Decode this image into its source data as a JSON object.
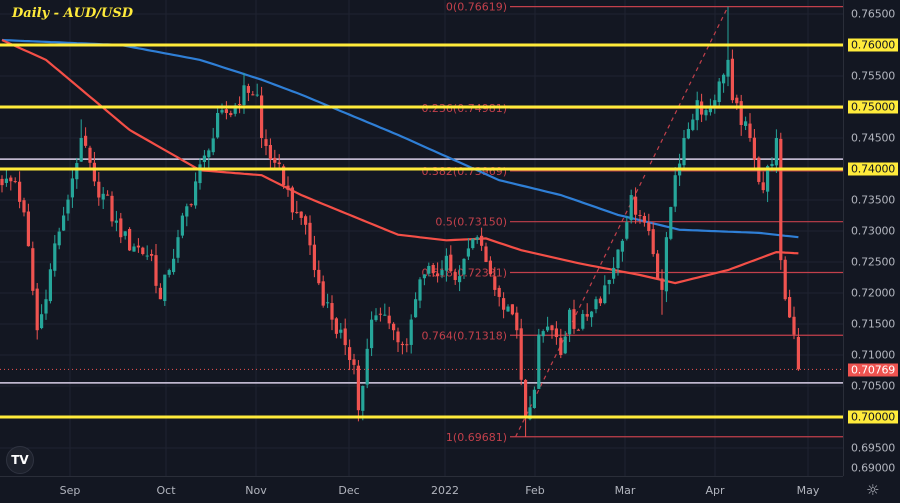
{
  "header": {
    "title": "Daily - AUD/USD"
  },
  "logo_text": "TV",
  "colors": {
    "up": "#26a69a",
    "down": "#ef5350",
    "ma_fast": "#f44f47",
    "ma_slow": "#2f7fd6",
    "level": "#ffeb3b",
    "support": "#d9cfe8",
    "fib": "#c2404b",
    "background": "#131722"
  },
  "chart_data": {
    "type": "candlestick",
    "title": "Daily - AUD/USD",
    "ylim": [
      0.688,
      0.7675
    ],
    "y_ticks": [
      "0.76500",
      "0.76000",
      "0.75500",
      "0.75000",
      "0.74500",
      "0.74000",
      "0.73500",
      "0.73000",
      "0.72500",
      "0.72000",
      "0.71500",
      "0.71000",
      "0.70500",
      "0.70000",
      "0.69500",
      "0.69000"
    ],
    "highlighted_ticks": [
      "0.76000",
      "0.75000",
      "0.74000",
      "0.70000"
    ],
    "current_price": "0.70769",
    "x_ticks": [
      "Sep",
      "Oct",
      "Nov",
      "Dec",
      "2022",
      "Feb",
      "Mar",
      "Apr",
      "May"
    ],
    "num_days": 182,
    "close_path": [
      [
        0,
        0.7374
      ],
      [
        3,
        0.738
      ],
      [
        5,
        0.733
      ],
      [
        8,
        0.714
      ],
      [
        10,
        0.719
      ],
      [
        12,
        0.728
      ],
      [
        14,
        0.7325
      ],
      [
        18,
        0.745
      ],
      [
        20,
        0.741
      ],
      [
        21,
        0.738
      ],
      [
        23,
        0.736
      ],
      [
        27,
        0.729
      ],
      [
        30,
        0.7275
      ],
      [
        34,
        0.726
      ],
      [
        36,
        0.719
      ],
      [
        38,
        0.7237
      ],
      [
        40,
        0.729
      ],
      [
        44,
        0.738
      ],
      [
        47,
        0.743
      ],
      [
        50,
        0.7495
      ],
      [
        52,
        0.7487
      ],
      [
        55,
        0.7535
      ],
      [
        58,
        0.752
      ],
      [
        59,
        0.745
      ],
      [
        62,
        0.741
      ],
      [
        64,
        0.7374
      ],
      [
        67,
        0.733
      ],
      [
        69,
        0.731
      ],
      [
        71,
        0.7237
      ],
      [
        75,
        0.7157
      ],
      [
        78,
        0.7116
      ],
      [
        80,
        0.7084
      ],
      [
        81,
        0.7011
      ],
      [
        82,
        0.705
      ],
      [
        84,
        0.7157
      ],
      [
        87,
        0.7165
      ],
      [
        89,
        0.714
      ],
      [
        92,
        0.7116
      ],
      [
        94,
        0.719
      ],
      [
        96,
        0.723
      ],
      [
        100,
        0.7237
      ],
      [
        101,
        0.726
      ],
      [
        103,
        0.7221
      ],
      [
        105,
        0.7255
      ],
      [
        108,
        0.729
      ],
      [
        110,
        0.725
      ],
      [
        112,
        0.7205
      ],
      [
        114,
        0.7173
      ],
      [
        117,
        0.714
      ],
      [
        118,
        0.706
      ],
      [
        119,
        0.7
      ],
      [
        121,
        0.7044
      ],
      [
        122,
        0.7133
      ],
      [
        125,
        0.714
      ],
      [
        127,
        0.71
      ],
      [
        129,
        0.7173
      ],
      [
        131,
        0.714
      ],
      [
        135,
        0.719
      ],
      [
        138,
        0.7221
      ],
      [
        140,
        0.727
      ],
      [
        143,
        0.7358
      ],
      [
        145,
        0.7325
      ],
      [
        147,
        0.73
      ],
      [
        150,
        0.7205
      ],
      [
        151,
        0.729
      ],
      [
        153,
        0.739
      ],
      [
        155,
        0.745
      ],
      [
        158,
        0.7511
      ],
      [
        160,
        0.7495
      ],
      [
        162,
        0.7511
      ],
      [
        164,
        0.7552
      ],
      [
        165,
        0.7576
      ],
      [
        166,
        0.7511
      ],
      [
        168,
        0.7471
      ],
      [
        170,
        0.745
      ],
      [
        171,
        0.7415
      ],
      [
        173,
        0.7366
      ],
      [
        176,
        0.745
      ],
      [
        177,
        0.7253
      ],
      [
        178,
        0.719
      ],
      [
        180,
        0.7133
      ],
      [
        181,
        0.70769
      ]
    ],
    "wick_extremes": [
      [
        18,
        "high",
        0.748
      ],
      [
        8,
        "low",
        0.7125
      ],
      [
        55,
        "high",
        0.7555
      ],
      [
        81,
        "low",
        0.6993
      ],
      [
        119,
        "low",
        0.6968
      ],
      [
        165,
        "high",
        0.76619
      ],
      [
        150,
        "low",
        0.7165
      ]
    ],
    "series": [
      {
        "name": "Slow MA (blue)",
        "points": [
          [
            0,
            0.7608
          ],
          [
            27,
            0.76
          ],
          [
            45,
            0.7576
          ],
          [
            59,
            0.7544
          ],
          [
            68,
            0.752
          ],
          [
            90,
            0.7455
          ],
          [
            113,
            0.7382
          ],
          [
            127,
            0.7358
          ],
          [
            140,
            0.7326
          ],
          [
            154,
            0.7302
          ],
          [
            172,
            0.7297
          ],
          [
            181,
            0.729
          ]
        ]
      },
      {
        "name": "Fast MA (red)",
        "points": [
          [
            0,
            0.7608
          ],
          [
            10,
            0.7576
          ],
          [
            29,
            0.7463
          ],
          [
            45,
            0.7398
          ],
          [
            59,
            0.739
          ],
          [
            68,
            0.7358
          ],
          [
            79,
            0.7326
          ],
          [
            90,
            0.7294
          ],
          [
            101,
            0.7285
          ],
          [
            110,
            0.7288
          ],
          [
            118,
            0.7269
          ],
          [
            131,
            0.7248
          ],
          [
            145,
            0.7229
          ],
          [
            153,
            0.7216
          ],
          [
            165,
            0.7237
          ],
          [
            176,
            0.7266
          ],
          [
            181,
            0.7264
          ]
        ]
      }
    ],
    "horizontal_levels": [
      0.76,
      0.75,
      0.74,
      0.7
    ],
    "support_lines": [
      0.7416,
      0.7055
    ],
    "fibonacci": {
      "from_day": 119,
      "to_day": 165,
      "levels": [
        {
          "label": "0(0.76619)",
          "price": 0.76619
        },
        {
          "label": "0.236(0.74981)",
          "price": 0.74981
        },
        {
          "label": "0.382(0.73969)",
          "price": 0.73969
        },
        {
          "label": "0.5(0.73150)",
          "price": 0.7315
        },
        {
          "label": "0.618(0.72331)",
          "price": 0.72331
        },
        {
          "label": "0.764(0.71318)",
          "price": 0.71318
        },
        {
          "label": "1(0.69681)",
          "price": 0.69681
        }
      ]
    }
  }
}
